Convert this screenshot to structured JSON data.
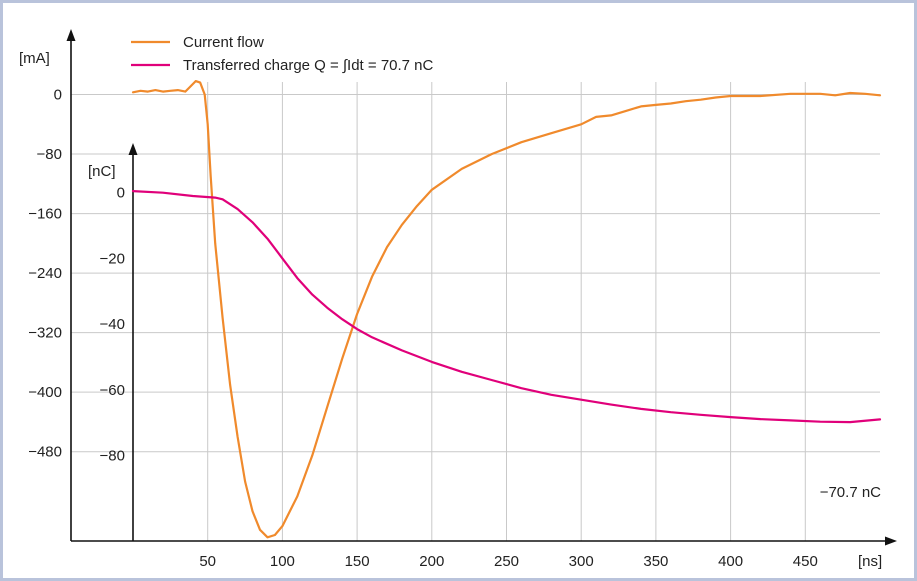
{
  "chart_data": {
    "type": "line",
    "colors": {
      "current": "#f08a2c",
      "charge": "#e0007a",
      "grid": "#c9c9c9",
      "axis": "#111111",
      "frame": "#b9c3db"
    },
    "x_axis": {
      "label": "[ns]",
      "ticks": [
        50,
        100,
        150,
        200,
        250,
        300,
        350,
        400,
        450
      ],
      "range": [
        0,
        500
      ]
    },
    "y_axis_current": {
      "label": "[mA]",
      "ticks": [
        0,
        -80,
        -160,
        -240,
        -320,
        -400,
        -480
      ],
      "range": [
        -600,
        80
      ]
    },
    "y_axis_charge": {
      "label": "[nC]",
      "ticks": [
        0,
        -20,
        -40,
        -60,
        -80
      ],
      "range": [
        -106,
        48
      ]
    },
    "grid": true,
    "legend_position": "top-left",
    "series": [
      {
        "name": "Current flow",
        "axis": "current",
        "points": [
          [
            0,
            3
          ],
          [
            5,
            5
          ],
          [
            10,
            4
          ],
          [
            15,
            6
          ],
          [
            20,
            4
          ],
          [
            25,
            5
          ],
          [
            30,
            6
          ],
          [
            35,
            4
          ],
          [
            38,
            10
          ],
          [
            42,
            18
          ],
          [
            45,
            16
          ],
          [
            48,
            0
          ],
          [
            50,
            -40
          ],
          [
            52,
            -110
          ],
          [
            55,
            -200
          ],
          [
            60,
            -300
          ],
          [
            65,
            -390
          ],
          [
            70,
            -460
          ],
          [
            75,
            -520
          ],
          [
            80,
            -560
          ],
          [
            85,
            -585
          ],
          [
            90,
            -595
          ],
          [
            95,
            -592
          ],
          [
            100,
            -580
          ],
          [
            110,
            -540
          ],
          [
            120,
            -485
          ],
          [
            130,
            -420
          ],
          [
            140,
            -355
          ],
          [
            150,
            -295
          ],
          [
            160,
            -245
          ],
          [
            170,
            -205
          ],
          [
            180,
            -175
          ],
          [
            190,
            -150
          ],
          [
            200,
            -128
          ],
          [
            220,
            -100
          ],
          [
            240,
            -80
          ],
          [
            260,
            -64
          ],
          [
            280,
            -52
          ],
          [
            300,
            -40
          ],
          [
            310,
            -30
          ],
          [
            320,
            -28
          ],
          [
            330,
            -22
          ],
          [
            340,
            -16
          ],
          [
            350,
            -14
          ],
          [
            360,
            -12
          ],
          [
            370,
            -9
          ],
          [
            380,
            -7
          ],
          [
            390,
            -4
          ],
          [
            400,
            -2
          ],
          [
            420,
            -2
          ],
          [
            440,
            1
          ],
          [
            460,
            1
          ],
          [
            470,
            -1
          ],
          [
            480,
            2
          ],
          [
            490,
            1
          ],
          [
            500,
            -1
          ]
        ]
      },
      {
        "name": "Transferred charge Q = ∫Idt = 70.7 nC",
        "axis": "charge",
        "points": [
          [
            0,
            0.5
          ],
          [
            20,
            0
          ],
          [
            40,
            -1
          ],
          [
            55,
            -1.5
          ],
          [
            60,
            -2
          ],
          [
            70,
            -5
          ],
          [
            80,
            -9
          ],
          [
            90,
            -14
          ],
          [
            100,
            -20
          ],
          [
            110,
            -26
          ],
          [
            120,
            -31
          ],
          [
            130,
            -35
          ],
          [
            140,
            -38.5
          ],
          [
            150,
            -41.5
          ],
          [
            160,
            -44
          ],
          [
            180,
            -48
          ],
          [
            200,
            -51.5
          ],
          [
            220,
            -54.5
          ],
          [
            240,
            -57
          ],
          [
            260,
            -59.5
          ],
          [
            280,
            -61.5
          ],
          [
            300,
            -63
          ],
          [
            320,
            -64.5
          ],
          [
            340,
            -65.8
          ],
          [
            360,
            -66.8
          ],
          [
            380,
            -67.6
          ],
          [
            400,
            -68.3
          ],
          [
            420,
            -68.9
          ],
          [
            440,
            -69.3
          ],
          [
            460,
            -69.7
          ],
          [
            480,
            -69.8
          ],
          [
            500,
            -69
          ]
        ]
      }
    ],
    "annotations": [
      {
        "text": "−70.7 nC",
        "x": 500,
        "y": -80
      }
    ]
  }
}
